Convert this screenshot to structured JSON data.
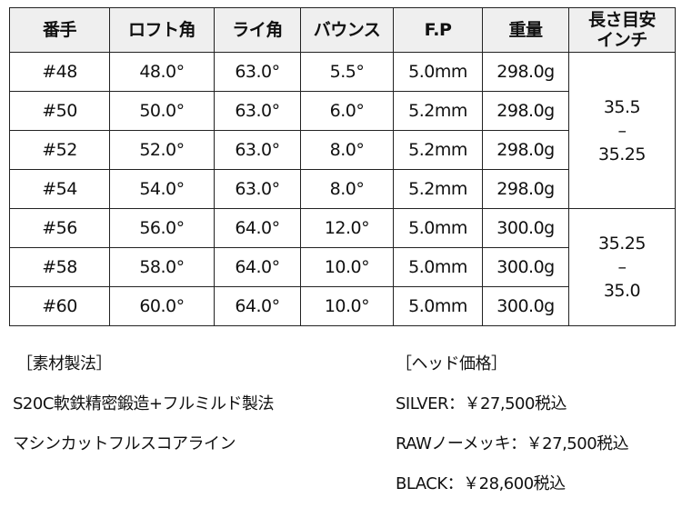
{
  "table": {
    "headers": [
      "番手",
      "ロフト角",
      "ライ角",
      "バウンス",
      "F.P",
      "重量",
      "長さ目安\nインチ"
    ],
    "rows": [
      [
        "#48",
        "48.0°",
        "63.0°",
        "5.5°",
        "5.0mm",
        "298.0g"
      ],
      [
        "#50",
        "50.0°",
        "63.0°",
        "6.0°",
        "5.2mm",
        "298.0g"
      ],
      [
        "#52",
        "52.0°",
        "63.0°",
        "8.0°",
        "5.2mm",
        "298.0g"
      ],
      [
        "#54",
        "54.0°",
        "63.0°",
        "8.0°",
        "5.2mm",
        "298.0g"
      ],
      [
        "#56",
        "56.0°",
        "64.0°",
        "12.0°",
        "5.0mm",
        "300.0g"
      ],
      [
        "#58",
        "58.0°",
        "64.0°",
        "10.0°",
        "5.0mm",
        "300.0g"
      ],
      [
        "#60",
        "60.0°",
        "64.0°",
        "10.0°",
        "5.0mm",
        "300.0g"
      ]
    ],
    "length_groups": [
      {
        "top": "35.5",
        "dash": "–",
        "bottom": "35.25"
      },
      {
        "top": "35.25",
        "dash": "–",
        "bottom": "35.0"
      }
    ]
  },
  "material": {
    "heading": "［素材製法］",
    "lines": [
      "S20C軟鉄精密鍛造+フルミルド製法",
      "マシンカットフルスコアライン"
    ]
  },
  "price": {
    "heading": "［ヘッド価格］",
    "lines": [
      "SILVER：￥27,500税込",
      "RAWノーメッキ：￥27,500税込",
      "BLACK：￥28,600税込"
    ]
  }
}
